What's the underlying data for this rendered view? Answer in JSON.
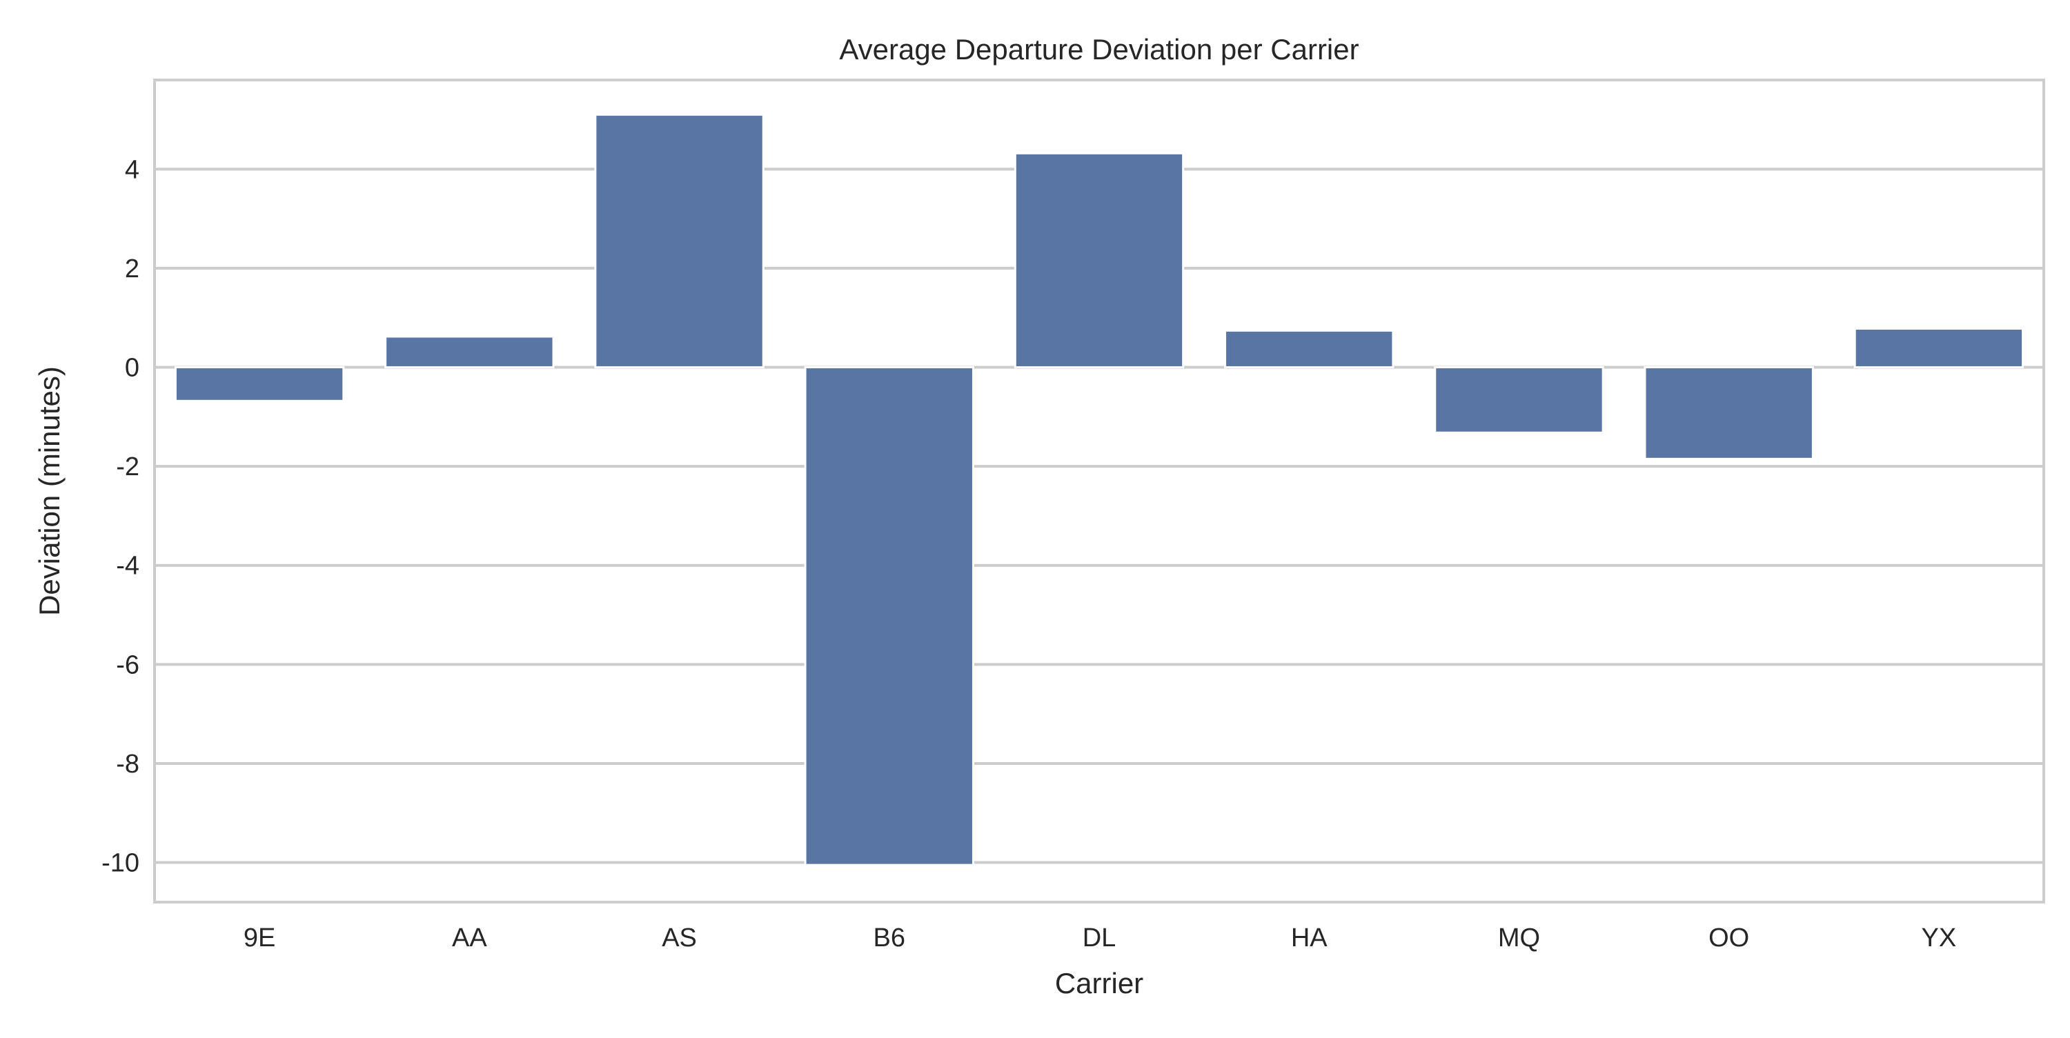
{
  "chart_data": {
    "type": "bar",
    "title": "Average Departure Deviation per Carrier",
    "xlabel": "Carrier",
    "ylabel": "Deviation (minutes)",
    "categories": [
      "9E",
      "AA",
      "AS",
      "B6",
      "DL",
      "HA",
      "MQ",
      "OO",
      "YX"
    ],
    "values": [
      -0.68,
      0.62,
      5.1,
      -10.05,
      4.32,
      0.74,
      -1.32,
      -1.85,
      0.78
    ],
    "ylim": [
      -10.8,
      5.8
    ],
    "yticks": [
      -10,
      -8,
      -6,
      -4,
      -2,
      0,
      2,
      4
    ],
    "ytick_labels": [
      "-10",
      "-8",
      "-6",
      "-4",
      "-2",
      "0",
      "2",
      "4"
    ],
    "grid": true,
    "bar_color": "#5975a4",
    "grid_color": "#cccccc",
    "spine_color": "#cccccc",
    "text_color": "#262626"
  }
}
